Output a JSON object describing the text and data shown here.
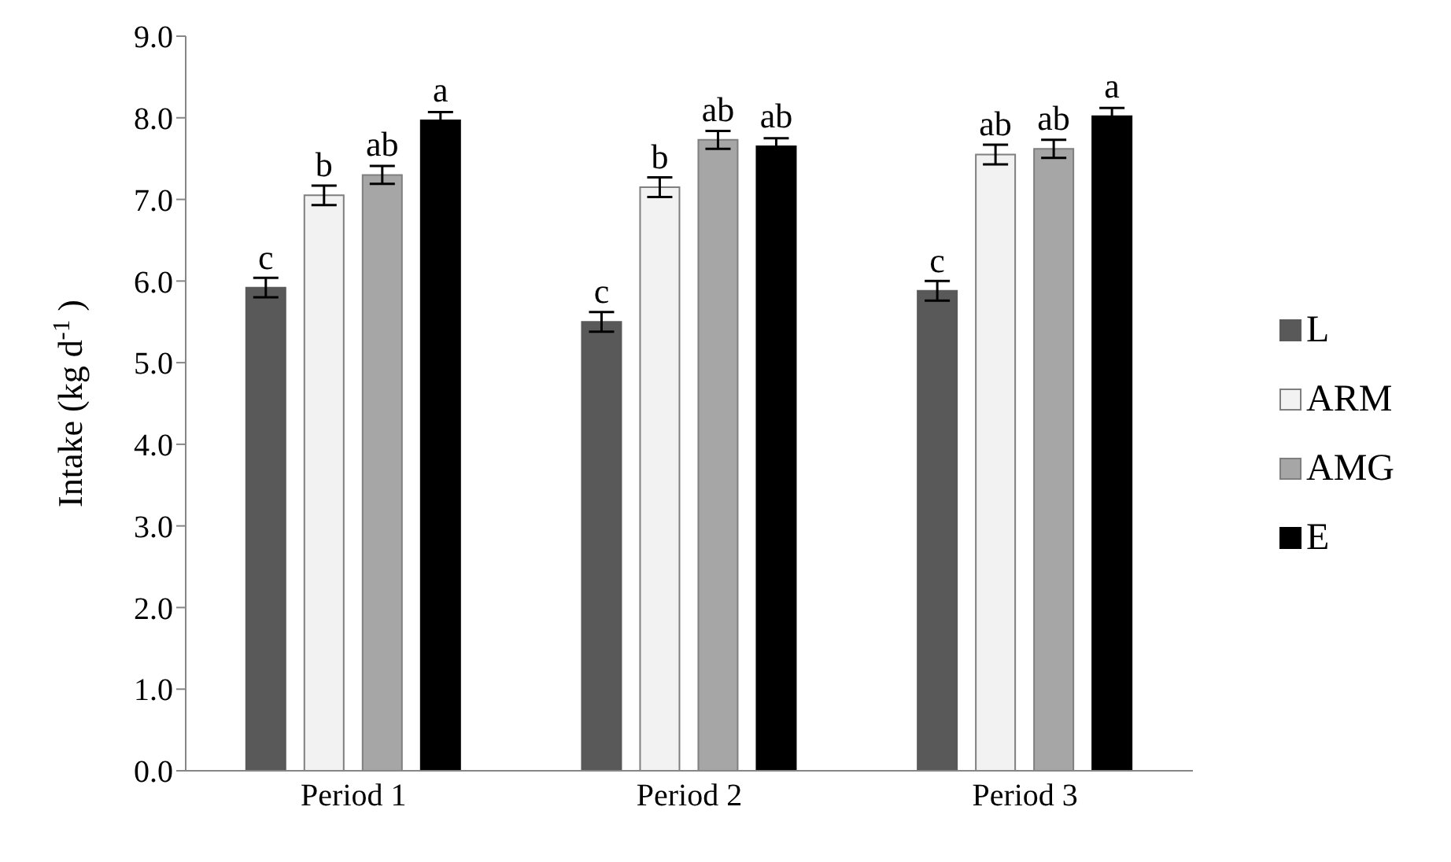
{
  "chart_data": {
    "type": "bar",
    "ylabel": "Intake (kg d$^{-1}$ )",
    "categories": [
      "Period 1",
      "Period 2",
      "Period 3"
    ],
    "series": [
      {
        "name": "L",
        "color": "#595959",
        "values": [
          5.92,
          5.5,
          5.88
        ],
        "errors": [
          0.12,
          0.12,
          0.12
        ],
        "value_labels": [
          "c",
          "c",
          "c"
        ]
      },
      {
        "name": "ARM",
        "color": "#f2f2f2",
        "values": [
          7.05,
          7.15,
          7.55
        ],
        "errors": [
          0.12,
          0.12,
          0.12
        ],
        "value_labels": [
          "b",
          "b",
          "ab"
        ]
      },
      {
        "name": "AMG",
        "color": "#a6a6a6",
        "values": [
          7.3,
          7.73,
          7.62
        ],
        "errors": [
          0.11,
          0.11,
          0.11
        ],
        "value_labels": [
          "ab",
          "ab",
          "ab"
        ]
      },
      {
        "name": "E",
        "color": "#000000",
        "values": [
          7.97,
          7.65,
          8.02
        ],
        "errors": [
          0.1,
          0.1,
          0.1
        ],
        "value_labels": [
          "a",
          "ab",
          "a"
        ]
      }
    ],
    "ylim": [
      0,
      9
    ],
    "yticks": [
      {
        "value": 0,
        "label": "0.0"
      },
      {
        "value": 1,
        "label": "1.0"
      },
      {
        "value": 2,
        "label": "2.0"
      },
      {
        "value": 3,
        "label": "3.0"
      },
      {
        "value": 4,
        "label": "4.0"
      },
      {
        "value": 5,
        "label": "5.0"
      },
      {
        "value": 6,
        "label": "6.0"
      },
      {
        "value": 7,
        "label": "7.0"
      },
      {
        "value": 8,
        "label": "8.0"
      },
      {
        "value": 9,
        "label": "9.0"
      }
    ],
    "grid": false,
    "legend": "right"
  }
}
